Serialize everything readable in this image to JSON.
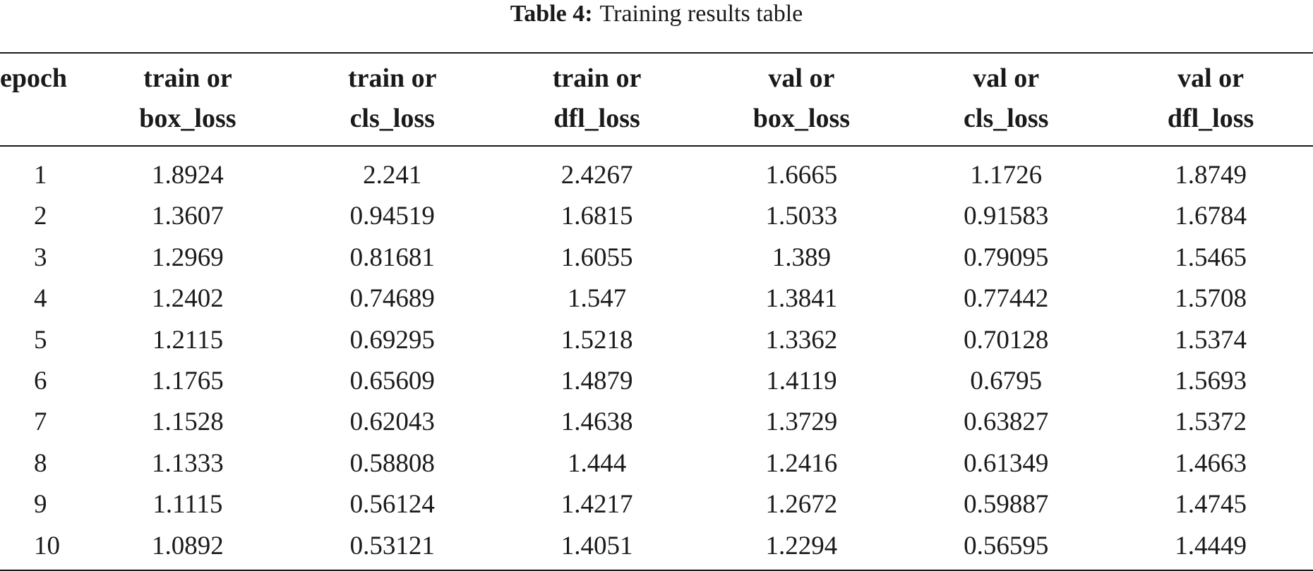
{
  "caption": {
    "label": "Table 4:",
    "text": "Training results table"
  },
  "table": {
    "headers": [
      {
        "line1": "epoch",
        "line2": ""
      },
      {
        "line1": "train or",
        "line2": "box_loss"
      },
      {
        "line1": "train or",
        "line2": "cls_loss"
      },
      {
        "line1": "train or",
        "line2": "dfl_loss"
      },
      {
        "line1": "val or",
        "line2": "box_loss"
      },
      {
        "line1": "val or",
        "line2": "cls_loss"
      },
      {
        "line1": "val or",
        "line2": "dfl_loss"
      }
    ],
    "rows": [
      [
        "1",
        "1.8924",
        "2.241",
        "2.4267",
        "1.6665",
        "1.1726",
        "1.8749"
      ],
      [
        "2",
        "1.3607",
        "0.94519",
        "1.6815",
        "1.5033",
        "0.91583",
        "1.6784"
      ],
      [
        "3",
        "1.2969",
        "0.81681",
        "1.6055",
        "1.389",
        "0.79095",
        "1.5465"
      ],
      [
        "4",
        "1.2402",
        "0.74689",
        "1.547",
        "1.3841",
        "0.77442",
        "1.5708"
      ],
      [
        "5",
        "1.2115",
        "0.69295",
        "1.5218",
        "1.3362",
        "0.70128",
        "1.5374"
      ],
      [
        "6",
        "1.1765",
        "0.65609",
        "1.4879",
        "1.4119",
        "0.6795",
        "1.5693"
      ],
      [
        "7",
        "1.1528",
        "0.62043",
        "1.4638",
        "1.3729",
        "0.63827",
        "1.5372"
      ],
      [
        "8",
        "1.1333",
        "0.58808",
        "1.444",
        "1.2416",
        "0.61349",
        "1.4663"
      ],
      [
        "9",
        "1.1115",
        "0.56124",
        "1.4217",
        "1.2672",
        "0.59887",
        "1.4745"
      ],
      [
        "10",
        "1.0892",
        "0.53121",
        "1.4051",
        "1.2294",
        "0.56595",
        "1.4449"
      ]
    ]
  }
}
